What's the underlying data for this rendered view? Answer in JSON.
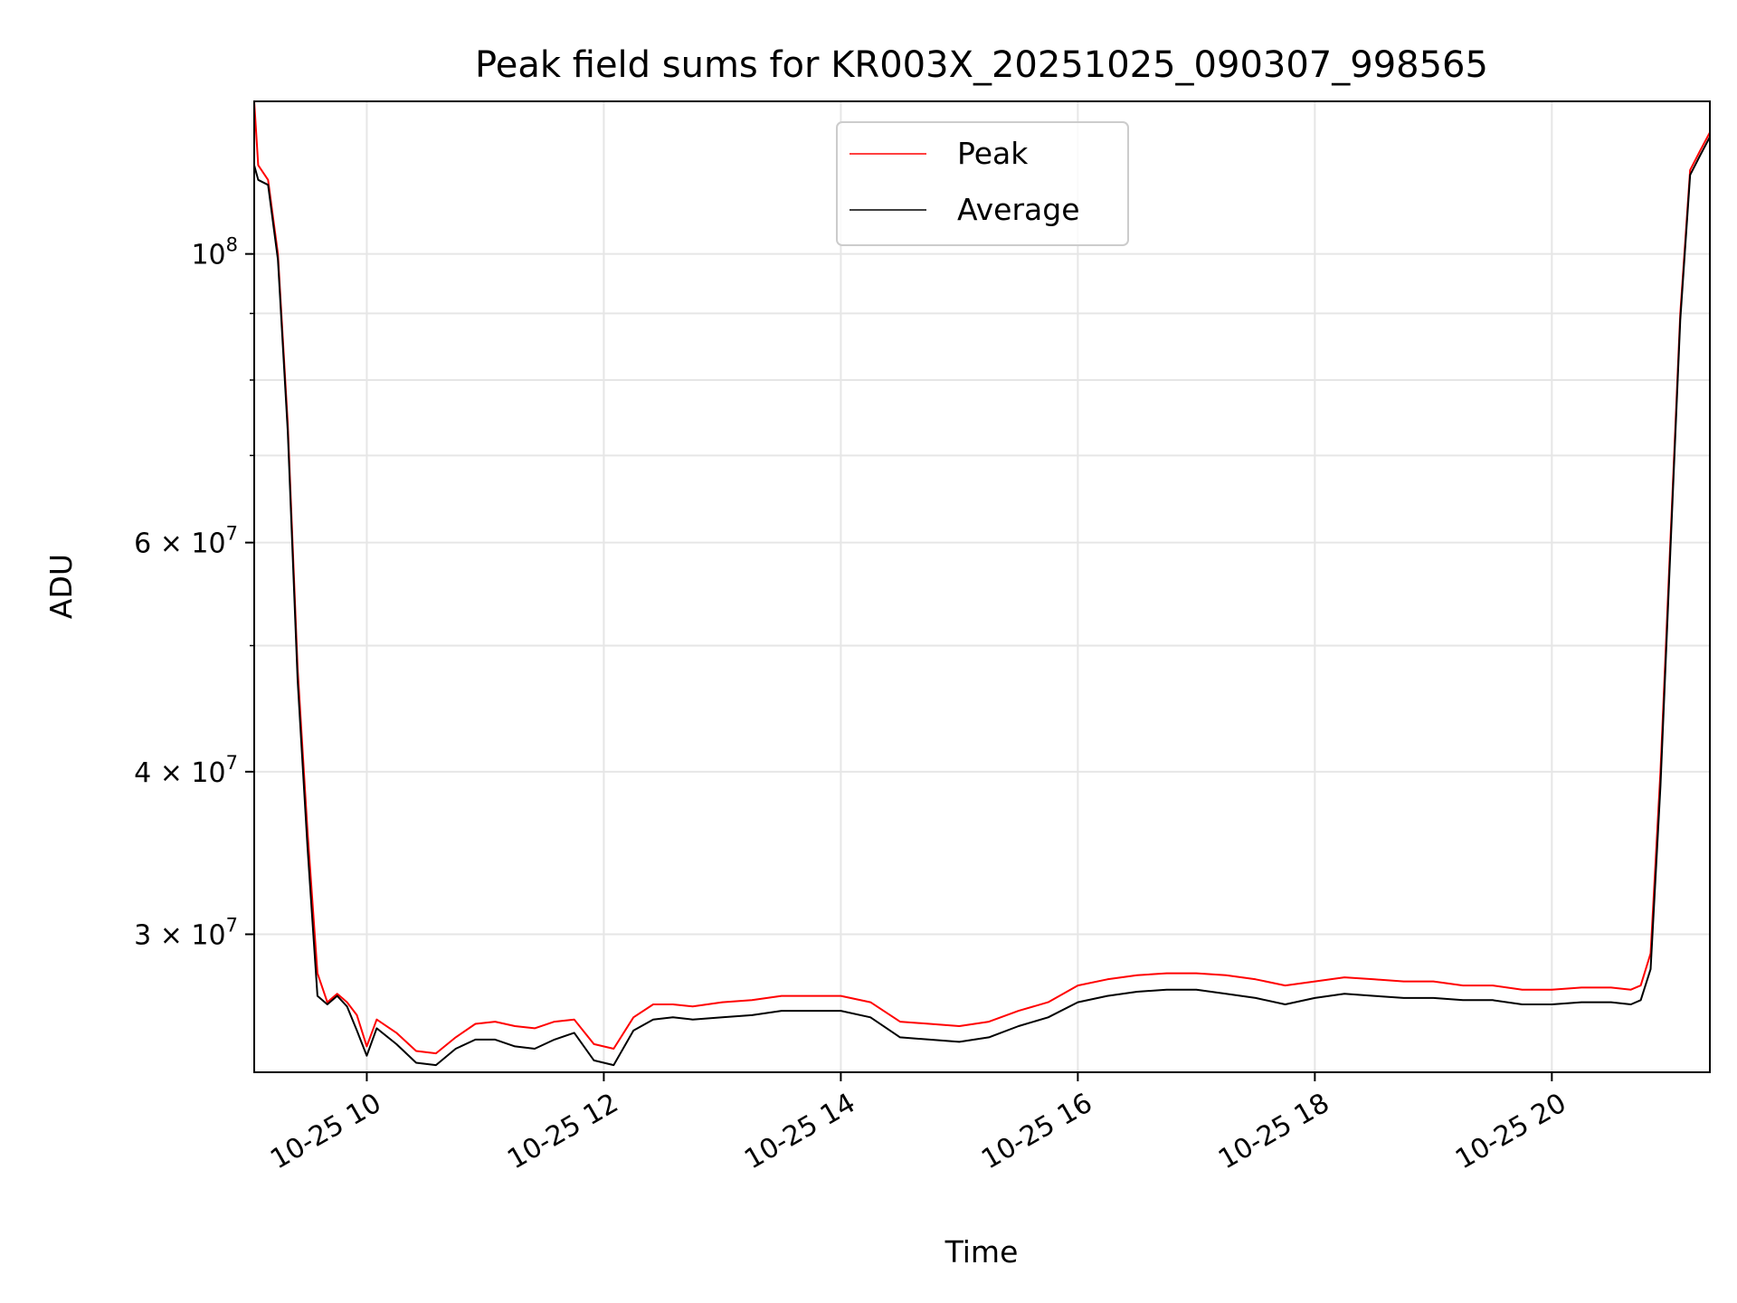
{
  "chart_data": {
    "type": "line",
    "title": "Peak field sums for KR003X_20251025_090307_998565",
    "xlabel": "Time",
    "ylabel": "ADU",
    "yscale": "log",
    "ylim": [
      23500000,
      131000000
    ],
    "xlim": [
      "2025-10-25 09:03",
      "2025-10-25 21:20"
    ],
    "x_ticks": [
      {
        "t": "2025-10-25 10:00",
        "label": "10-25 10"
      },
      {
        "t": "2025-10-25 12:00",
        "label": "10-25 12"
      },
      {
        "t": "2025-10-25 14:00",
        "label": "10-25 14"
      },
      {
        "t": "2025-10-25 16:00",
        "label": "10-25 16"
      },
      {
        "t": "2025-10-25 18:00",
        "label": "10-25 18"
      },
      {
        "t": "2025-10-25 20:00",
        "label": "10-25 20"
      }
    ],
    "y_ticks": [
      {
        "value": 30000000,
        "base": "3",
        "exp": "7"
      },
      {
        "value": 40000000,
        "base": "4",
        "exp": "7"
      },
      {
        "value": 60000000,
        "base": "6",
        "exp": "7"
      },
      {
        "value": 100000000,
        "base": "",
        "exp": "8"
      }
    ],
    "y_minor_ticks": [
      50000000,
      70000000,
      80000000,
      90000000
    ],
    "grid": true,
    "legend": {
      "position": "upper center"
    },
    "series": [
      {
        "name": "Peak",
        "color": "#ff0000",
        "x": [
          "2025-10-25 09:03",
          "2025-10-25 09:05",
          "2025-10-25 09:10",
          "2025-10-25 09:15",
          "2025-10-25 09:20",
          "2025-10-25 09:25",
          "2025-10-25 09:30",
          "2025-10-25 09:35",
          "2025-10-25 09:40",
          "2025-10-25 09:45",
          "2025-10-25 09:50",
          "2025-10-25 09:55",
          "2025-10-25 10:00",
          "2025-10-25 10:05",
          "2025-10-25 10:15",
          "2025-10-25 10:25",
          "2025-10-25 10:35",
          "2025-10-25 10:45",
          "2025-10-25 10:55",
          "2025-10-25 11:05",
          "2025-10-25 11:15",
          "2025-10-25 11:25",
          "2025-10-25 11:35",
          "2025-10-25 11:45",
          "2025-10-25 11:55",
          "2025-10-25 12:05",
          "2025-10-25 12:15",
          "2025-10-25 12:25",
          "2025-10-25 12:35",
          "2025-10-25 12:45",
          "2025-10-25 13:00",
          "2025-10-25 13:15",
          "2025-10-25 13:30",
          "2025-10-25 13:45",
          "2025-10-25 14:00",
          "2025-10-25 14:15",
          "2025-10-25 14:30",
          "2025-10-25 14:45",
          "2025-10-25 15:00",
          "2025-10-25 15:15",
          "2025-10-25 15:30",
          "2025-10-25 15:45",
          "2025-10-25 16:00",
          "2025-10-25 16:15",
          "2025-10-25 16:30",
          "2025-10-25 16:45",
          "2025-10-25 17:00",
          "2025-10-25 17:15",
          "2025-10-25 17:30",
          "2025-10-25 17:45",
          "2025-10-25 18:00",
          "2025-10-25 18:15",
          "2025-10-25 18:30",
          "2025-10-25 18:45",
          "2025-10-25 19:00",
          "2025-10-25 19:15",
          "2025-10-25 19:30",
          "2025-10-25 19:45",
          "2025-10-25 20:00",
          "2025-10-25 20:15",
          "2025-10-25 20:30",
          "2025-10-25 20:40",
          "2025-10-25 20:45",
          "2025-10-25 20:50",
          "2025-10-25 20:55",
          "2025-10-25 21:00",
          "2025-10-25 21:05",
          "2025-10-25 21:10",
          "2025-10-25 21:15",
          "2025-10-25 21:20"
        ],
        "values": [
          131000000,
          117000000,
          114000000,
          100000000,
          74000000,
          48000000,
          36000000,
          28000000,
          26600000,
          27000000,
          26600000,
          26000000,
          24600000,
          25800000,
          25200000,
          24400000,
          24300000,
          25000000,
          25600000,
          25700000,
          25500000,
          25400000,
          25700000,
          25800000,
          24700000,
          24500000,
          25900000,
          26500000,
          26500000,
          26400000,
          26600000,
          26700000,
          26900000,
          26900000,
          26900000,
          26600000,
          25700000,
          25600000,
          25500000,
          25700000,
          26200000,
          26600000,
          27400000,
          27700000,
          27900000,
          28000000,
          28000000,
          27900000,
          27700000,
          27400000,
          27600000,
          27800000,
          27700000,
          27600000,
          27600000,
          27400000,
          27400000,
          27200000,
          27200000,
          27300000,
          27300000,
          27200000,
          27400000,
          29000000,
          40000000,
          60000000,
          90000000,
          116000000,
          120000000,
          124000000
        ]
      },
      {
        "name": "Average",
        "color": "#000000",
        "x": [
          "2025-10-25 09:03",
          "2025-10-25 09:05",
          "2025-10-25 09:10",
          "2025-10-25 09:15",
          "2025-10-25 09:20",
          "2025-10-25 09:25",
          "2025-10-25 09:30",
          "2025-10-25 09:35",
          "2025-10-25 09:40",
          "2025-10-25 09:45",
          "2025-10-25 09:50",
          "2025-10-25 09:55",
          "2025-10-25 10:00",
          "2025-10-25 10:05",
          "2025-10-25 10:15",
          "2025-10-25 10:25",
          "2025-10-25 10:35",
          "2025-10-25 10:45",
          "2025-10-25 10:55",
          "2025-10-25 11:05",
          "2025-10-25 11:15",
          "2025-10-25 11:25",
          "2025-10-25 11:35",
          "2025-10-25 11:45",
          "2025-10-25 11:55",
          "2025-10-25 12:05",
          "2025-10-25 12:15",
          "2025-10-25 12:25",
          "2025-10-25 12:35",
          "2025-10-25 12:45",
          "2025-10-25 13:00",
          "2025-10-25 13:15",
          "2025-10-25 13:30",
          "2025-10-25 13:45",
          "2025-10-25 14:00",
          "2025-10-25 14:15",
          "2025-10-25 14:30",
          "2025-10-25 14:45",
          "2025-10-25 15:00",
          "2025-10-25 15:15",
          "2025-10-25 15:30",
          "2025-10-25 15:45",
          "2025-10-25 16:00",
          "2025-10-25 16:15",
          "2025-10-25 16:30",
          "2025-10-25 16:45",
          "2025-10-25 17:00",
          "2025-10-25 17:15",
          "2025-10-25 17:30",
          "2025-10-25 17:45",
          "2025-10-25 18:00",
          "2025-10-25 18:15",
          "2025-10-25 18:30",
          "2025-10-25 18:45",
          "2025-10-25 19:00",
          "2025-10-25 19:15",
          "2025-10-25 19:30",
          "2025-10-25 19:45",
          "2025-10-25 20:00",
          "2025-10-25 20:15",
          "2025-10-25 20:30",
          "2025-10-25 20:40",
          "2025-10-25 20:45",
          "2025-10-25 20:50",
          "2025-10-25 20:55",
          "2025-10-25 21:00",
          "2025-10-25 21:05",
          "2025-10-25 21:10",
          "2025-10-25 21:15",
          "2025-10-25 21:20"
        ],
        "values": [
          117000000,
          114000000,
          113000000,
          99000000,
          73000000,
          47000000,
          35000000,
          26900000,
          26500000,
          26900000,
          26400000,
          25300000,
          24200000,
          25400000,
          24700000,
          23900000,
          23800000,
          24500000,
          24900000,
          24900000,
          24600000,
          24500000,
          24900000,
          25200000,
          24000000,
          23800000,
          25300000,
          25800000,
          25900000,
          25800000,
          25900000,
          26000000,
          26200000,
          26200000,
          26200000,
          25900000,
          25000000,
          24900000,
          24800000,
          25000000,
          25500000,
          25900000,
          26600000,
          26900000,
          27100000,
          27200000,
          27200000,
          27000000,
          26800000,
          26500000,
          26800000,
          27000000,
          26900000,
          26800000,
          26800000,
          26700000,
          26700000,
          26500000,
          26500000,
          26600000,
          26600000,
          26500000,
          26700000,
          28200000,
          39000000,
          59000000,
          89000000,
          115000000,
          119000000,
          123000000
        ]
      }
    ]
  }
}
